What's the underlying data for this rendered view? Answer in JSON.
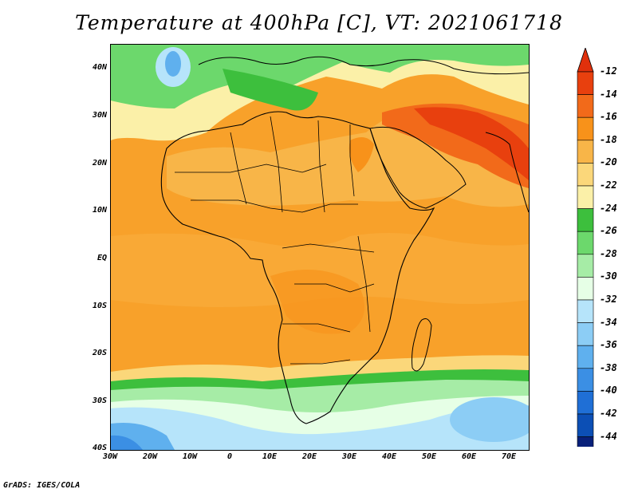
{
  "title": "Temperature at 400hPa [C], VT: 2021061718",
  "credit": "GrADS: IGES/COLA",
  "lat_labels": [
    "40N",
    "30N",
    "20N",
    "10N",
    "EQ",
    "10S",
    "20S",
    "30S",
    "40S"
  ],
  "lon_labels": [
    "30W",
    "20W",
    "10W",
    "0",
    "10E",
    "20E",
    "30E",
    "40E",
    "50E",
    "60E",
    "70E"
  ],
  "colorbar": {
    "labels": [
      "-12",
      "-14",
      "-16",
      "-18",
      "-20",
      "-22",
      "-24",
      "-26",
      "-28",
      "-30",
      "-32",
      "-34",
      "-36",
      "-38",
      "-40",
      "-42",
      "-44"
    ],
    "colors": [
      "#e8400e",
      "#f26a1a",
      "#f8921a",
      "#f8b548",
      "#fbd77a",
      "#fbf0a8",
      "#3dbf3d",
      "#6cd86c",
      "#a6eca6",
      "#e6ffe6",
      "#b6e4fa",
      "#8ccdf5",
      "#5fb0ee",
      "#3b8fe4",
      "#1f6fd6",
      "#0c4fb5",
      "#08207a"
    ],
    "over_color": "#e0300c",
    "under_color": "#d0c8f8"
  },
  "map_colors": {
    "ocean_warm": "#f8a630",
    "land_warm": "#fbd77a"
  }
}
